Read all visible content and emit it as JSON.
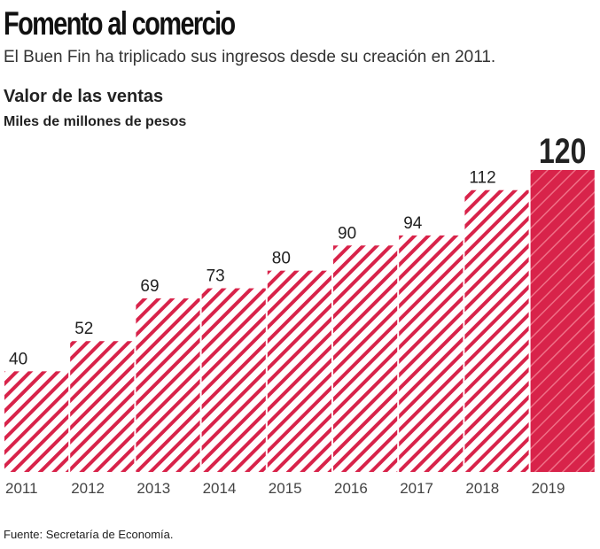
{
  "header": {
    "title": "Fomento al comercio",
    "subtitle": "El Buen Fin ha triplicado sus ingresos desde su creación en 2011."
  },
  "footer": {
    "source": "Fuente: Secretaría de Economía."
  },
  "colors": {
    "bar": "#d8234a"
  },
  "chart_data": {
    "type": "bar",
    "title": "Valor de las ventas",
    "subtitle": "Miles de millones de pesos",
    "categories": [
      "2011",
      "2012",
      "2013",
      "2014",
      "2015",
      "2016",
      "2017",
      "2018",
      "2019"
    ],
    "values": [
      40,
      52,
      69,
      73,
      80,
      90,
      94,
      112,
      120
    ],
    "data_labels": [
      "40",
      "52",
      "69",
      "73",
      "80",
      "90",
      "94",
      "112",
      "120"
    ],
    "highlight": "2019",
    "ylim": [
      0,
      120
    ],
    "grid": false,
    "legend": "none"
  }
}
